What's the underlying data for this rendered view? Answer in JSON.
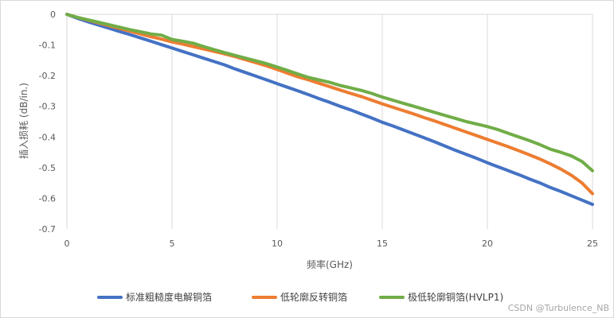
{
  "chart_data": {
    "type": "line",
    "title": "",
    "xlabel": "频率(GHz)",
    "ylabel": "插入损耗 (dB/in.)",
    "xlim": [
      0,
      25
    ],
    "ylim": [
      -0.7,
      0
    ],
    "xticks": [
      0,
      5,
      10,
      15,
      20,
      25
    ],
    "yticks": [
      0,
      -0.1,
      -0.2,
      -0.3,
      -0.4,
      -0.5,
      -0.6,
      -0.7
    ],
    "grid": "vertical",
    "legend_position": "bottom",
    "series": [
      {
        "name": "标准粗糙度电解铜箔",
        "color": "#4472c4",
        "x": [
          0,
          0.5,
          1,
          1.5,
          2,
          2.5,
          3,
          3.5,
          4,
          4.5,
          5,
          5.5,
          6,
          6.5,
          7,
          7.5,
          8,
          8.5,
          9,
          9.5,
          10,
          10.5,
          11,
          11.5,
          12,
          12.5,
          13,
          13.5,
          14,
          14.5,
          15,
          15.5,
          16,
          16.5,
          17,
          17.5,
          18,
          18.5,
          19,
          19.5,
          20,
          20.5,
          21,
          21.5,
          22,
          22.5,
          23,
          23.5,
          24,
          24.5,
          25
        ],
        "y": [
          0,
          -0.013,
          -0.024,
          -0.035,
          -0.045,
          -0.056,
          -0.066,
          -0.077,
          -0.088,
          -0.099,
          -0.11,
          -0.121,
          -0.132,
          -0.143,
          -0.154,
          -0.165,
          -0.178,
          -0.19,
          -0.202,
          -0.214,
          -0.226,
          -0.238,
          -0.25,
          -0.262,
          -0.275,
          -0.287,
          -0.3,
          -0.312,
          -0.325,
          -0.338,
          -0.352,
          -0.364,
          -0.377,
          -0.39,
          -0.403,
          -0.416,
          -0.43,
          -0.444,
          -0.457,
          -0.47,
          -0.484,
          -0.497,
          -0.51,
          -0.523,
          -0.537,
          -0.55,
          -0.565,
          -0.578,
          -0.592,
          -0.606,
          -0.62
        ]
      },
      {
        "name": "低轮廓反转铜箔",
        "color": "#ed7d31",
        "x": [
          0,
          0.5,
          1,
          1.5,
          2,
          2.5,
          3,
          3.5,
          4,
          4.5,
          5,
          5.5,
          6,
          6.5,
          7,
          7.5,
          8,
          8.5,
          9,
          9.5,
          10,
          10.5,
          11,
          11.5,
          12,
          12.5,
          13,
          13.5,
          14,
          14.5,
          15,
          15.5,
          16,
          16.5,
          17,
          17.5,
          18,
          18.5,
          19,
          19.5,
          20,
          20.5,
          21,
          21.5,
          22,
          22.5,
          23,
          23.5,
          24,
          24.5,
          25
        ],
        "y": [
          0,
          -0.01,
          -0.019,
          -0.028,
          -0.037,
          -0.046,
          -0.055,
          -0.064,
          -0.073,
          -0.081,
          -0.09,
          -0.097,
          -0.105,
          -0.113,
          -0.121,
          -0.129,
          -0.138,
          -0.148,
          -0.158,
          -0.168,
          -0.18,
          -0.192,
          -0.204,
          -0.214,
          -0.225,
          -0.236,
          -0.247,
          -0.258,
          -0.268,
          -0.28,
          -0.292,
          -0.303,
          -0.314,
          -0.325,
          -0.337,
          -0.348,
          -0.36,
          -0.372,
          -0.384,
          -0.396,
          -0.408,
          -0.42,
          -0.432,
          -0.445,
          -0.458,
          -0.472,
          -0.488,
          -0.505,
          -0.525,
          -0.55,
          -0.585
        ]
      },
      {
        "name": "极低轮廓铜箔(HVLP1)",
        "color": "#70ad47",
        "x": [
          0,
          0.5,
          1,
          1.5,
          2,
          2.5,
          3,
          3.5,
          4,
          4.5,
          5,
          5.5,
          6,
          6.5,
          7,
          7.5,
          8,
          8.5,
          9,
          9.5,
          10,
          10.5,
          11,
          11.5,
          12,
          12.5,
          13,
          13.5,
          14,
          14.5,
          15,
          15.5,
          16,
          16.5,
          17,
          17.5,
          18,
          18.5,
          19,
          19.5,
          20,
          20.5,
          21,
          21.5,
          22,
          22.5,
          23,
          23.5,
          24,
          24.5,
          25
        ],
        "y": [
          0,
          -0.01,
          -0.018,
          -0.026,
          -0.034,
          -0.042,
          -0.05,
          -0.057,
          -0.064,
          -0.068,
          -0.082,
          -0.088,
          -0.094,
          -0.105,
          -0.115,
          -0.125,
          -0.134,
          -0.143,
          -0.152,
          -0.161,
          -0.172,
          -0.183,
          -0.195,
          -0.206,
          -0.214,
          -0.222,
          -0.232,
          -0.24,
          -0.248,
          -0.258,
          -0.27,
          -0.28,
          -0.29,
          -0.3,
          -0.31,
          -0.32,
          -0.33,
          -0.34,
          -0.35,
          -0.358,
          -0.366,
          -0.376,
          -0.388,
          -0.4,
          -0.412,
          -0.425,
          -0.44,
          -0.45,
          -0.462,
          -0.48,
          -0.51
        ]
      }
    ]
  },
  "watermark": "CSDN @Turbulence_NB"
}
